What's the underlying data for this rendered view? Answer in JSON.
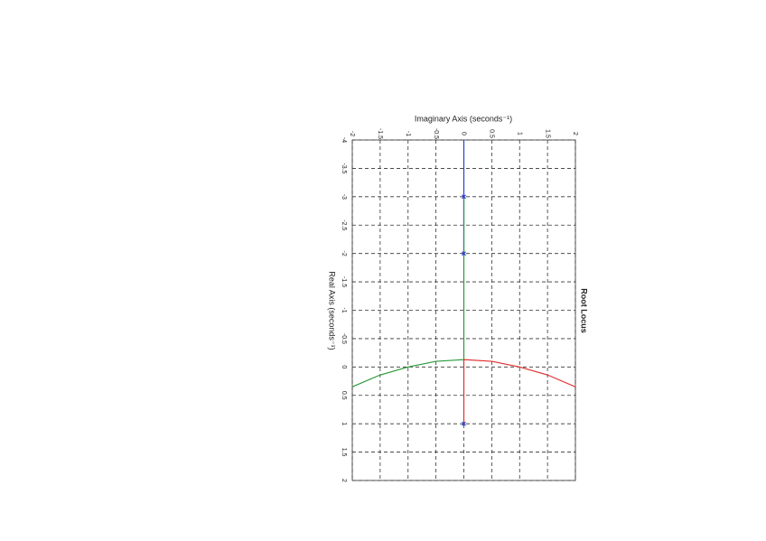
{
  "chart_data": {
    "type": "line",
    "title": "Root Locus",
    "xlabel": "Imaginary Axis (seconds⁻¹)",
    "ylabel": "Real Axis (seconds⁻¹)",
    "xlim": [
      -2,
      2
    ],
    "xticks": [
      -2,
      -1.5,
      -1,
      -0.5,
      0,
      0.5,
      1,
      1.5,
      2
    ],
    "ylim": [
      -4,
      2
    ],
    "yticks": [
      -4,
      -3.5,
      -3,
      -2.5,
      -2,
      -1.5,
      -1,
      -0.5,
      0,
      0.5,
      1,
      1.5,
      2
    ],
    "y_inverted": true,
    "grid": true,
    "series": [
      {
        "color": "#2b3fd6",
        "x": [
          0,
          0
        ],
        "y": [
          -4,
          -2
        ]
      },
      {
        "color": "#2a9a3a",
        "x": [
          0,
          0,
          -0.5,
          -1,
          -1.5,
          -2
        ],
        "y": [
          -3,
          -0.13,
          -0.1,
          0,
          0.14,
          0.35
        ]
      },
      {
        "color": "#e03030",
        "x": [
          0,
          0,
          0.5,
          1,
          1.5,
          2
        ],
        "y": [
          1,
          -0.13,
          -0.1,
          0,
          0.14,
          0.35
        ]
      }
    ],
    "markers": {
      "color": "#2b3fd6",
      "x": [
        0,
        0,
        0
      ],
      "y": [
        -2,
        -3,
        1
      ]
    }
  }
}
